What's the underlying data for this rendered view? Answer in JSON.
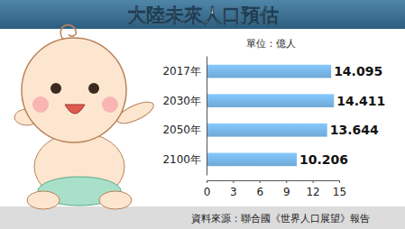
{
  "chart_data": {
    "type": "bar",
    "orientation": "horizontal",
    "title": "大陸未來人口預估",
    "subtitle": "單位：億人",
    "annotations": [
      "資料來源：聯合國《世界人口展望》報告"
    ],
    "categories": [
      "2017年",
      "2030年",
      "2050年",
      "2100年"
    ],
    "values": [
      14.095,
      14.411,
      13.644,
      10.206
    ],
    "color": "#6fa8d6",
    "xlim": [
      0,
      15
    ],
    "xticks": [
      0,
      3,
      6,
      9,
      12,
      15
    ],
    "grid": false,
    "data_labels": true
  }
}
